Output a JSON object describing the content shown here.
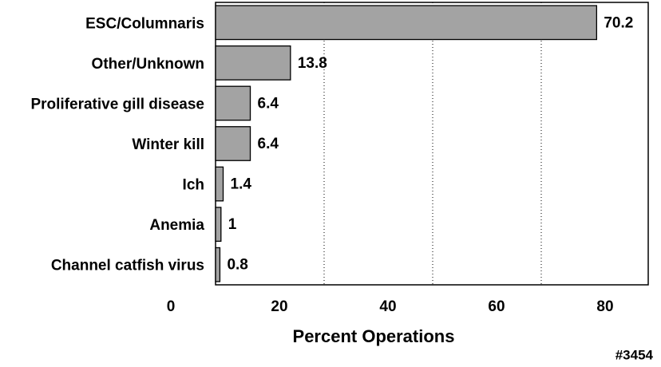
{
  "chart_data": {
    "type": "bar",
    "orientation": "horizontal",
    "categories": [
      "ESC/Columnaris",
      "Other/Unknown",
      "Proliferative gill disease",
      "Winter kill",
      "Ich",
      "Anemia",
      "Channel catfish virus"
    ],
    "values": [
      70.2,
      13.8,
      6.4,
      6.4,
      1.4,
      1,
      0.8
    ],
    "color": "#a3a3a3",
    "xlabel": "Percent Operations",
    "xlim": [
      0,
      80
    ],
    "xticks": [
      0,
      20,
      40,
      60,
      80
    ],
    "grid": true,
    "annotation": "#3454"
  }
}
